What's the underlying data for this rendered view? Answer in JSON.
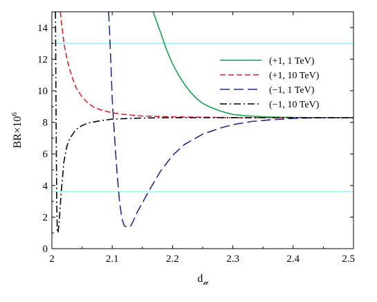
{
  "chart_data": {
    "type": "line",
    "title": "",
    "xlabel_main": "d",
    "xlabel_sub": "𝓊",
    "ylabel": "BR×10",
    "ylabel_sup": "6",
    "xlim": [
      2.0,
      2.5
    ],
    "ylim": [
      0,
      15
    ],
    "xticks": [
      2,
      2.1,
      2.2,
      2.3,
      2.4,
      2.5
    ],
    "xtick_labels": [
      "2",
      "2.1",
      "2.2",
      "2.3",
      "2.4",
      "2.5"
    ],
    "yticks": [
      0,
      2,
      4,
      6,
      8,
      10,
      12,
      14
    ],
    "ytick_labels": [
      "0",
      "2",
      "4",
      "6",
      "8",
      "10",
      "12",
      "14"
    ],
    "grid": false,
    "legend_position": "right",
    "reference_lines": [
      {
        "y": 13.0,
        "color": "#7fe3f0"
      },
      {
        "y": 3.6,
        "color": "#7fe3f0"
      }
    ],
    "series": [
      {
        "name": "(+1, 1 TeV)",
        "color": "#11a24a",
        "dash": "solid",
        "x": [
          2.168,
          2.18,
          2.19,
          2.2,
          2.21,
          2.22,
          2.23,
          2.24,
          2.25,
          2.26,
          2.28,
          2.3,
          2.32,
          2.35,
          2.38,
          2.42,
          2.46,
          2.5
        ],
        "y": [
          15.0,
          13.7,
          12.6,
          11.7,
          11.0,
          10.4,
          9.9,
          9.5,
          9.2,
          9.0,
          8.7,
          8.5,
          8.42,
          8.35,
          8.32,
          8.3,
          8.3,
          8.3
        ]
      },
      {
        "name": "(+1, 10 TeV)",
        "color": "#d8232a",
        "dash": "dashed",
        "x": [
          2.014,
          2.02,
          2.025,
          2.03,
          2.035,
          2.04,
          2.05,
          2.06,
          2.07,
          2.08,
          2.1,
          2.12,
          2.15,
          2.2,
          2.3,
          2.4,
          2.5
        ],
        "y": [
          15.0,
          13.0,
          12.0,
          11.3,
          10.7,
          10.2,
          9.6,
          9.2,
          8.95,
          8.8,
          8.6,
          8.5,
          8.4,
          8.35,
          8.3,
          8.3,
          8.3
        ]
      },
      {
        "name": "(−1, 1 TeV)",
        "color": "#262a84",
        "dash": "longdash",
        "x": [
          2.094,
          2.096,
          2.1,
          2.104,
          2.108,
          2.112,
          2.116,
          2.12,
          2.125,
          2.13,
          2.135,
          2.14,
          2.15,
          2.16,
          2.18,
          2.2,
          2.22,
          2.25,
          2.28,
          2.3,
          2.33,
          2.36,
          2.4,
          2.45,
          2.5
        ],
        "y": [
          15.0,
          13.5,
          9.5,
          7.0,
          4.8,
          3.0,
          1.9,
          1.45,
          1.35,
          1.4,
          1.75,
          2.2,
          2.9,
          3.6,
          4.9,
          5.9,
          6.6,
          7.25,
          7.65,
          7.85,
          8.05,
          8.15,
          8.25,
          8.3,
          8.3
        ]
      },
      {
        "name": "(−1, 10 TeV)",
        "color": "#000000",
        "dash": "dashdot",
        "x": [
          2.006,
          2.007,
          2.008,
          2.009,
          2.01,
          2.012,
          2.015,
          2.02,
          2.025,
          2.03,
          2.04,
          2.05,
          2.06,
          2.08,
          2.1,
          2.15,
          2.2,
          2.3,
          2.4,
          2.5
        ],
        "y": [
          15.0,
          8.0,
          3.0,
          1.2,
          1.0,
          1.6,
          3.4,
          5.5,
          6.5,
          7.0,
          7.55,
          7.8,
          7.95,
          8.1,
          8.2,
          8.27,
          8.3,
          8.3,
          8.3,
          8.3
        ]
      }
    ]
  }
}
